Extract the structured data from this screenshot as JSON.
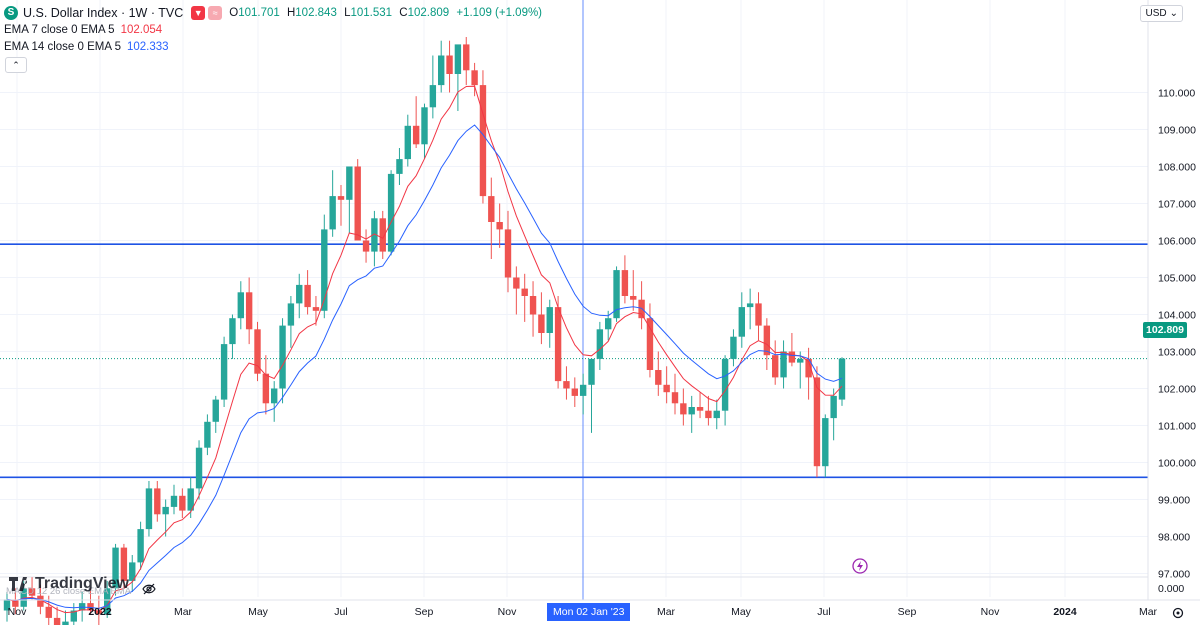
{
  "legend": {
    "symbol_icon": "S",
    "title": "U.S. Dollar Index · 1W · TVC",
    "ohlc": [
      {
        "key": "O",
        "value": "101.701"
      },
      {
        "key": "H",
        "value": "102.843"
      },
      {
        "key": "L",
        "value": "101.531"
      },
      {
        "key": "C",
        "value": "102.809"
      },
      {
        "key": "",
        "value": "+1.109 (+1.09%)"
      }
    ],
    "indicators": [
      {
        "label": "EMA 7 close 0 EMA 5",
        "value": "102.054",
        "color": "#f23645"
      },
      {
        "label": "EMA 14 close 0 EMA 5",
        "value": "102.333",
        "color": "#2962ff"
      }
    ]
  },
  "currency": "USD",
  "last_price_label": "102.809",
  "crosshair_date_label": "Mon 02 Jan '23",
  "watermark": "TradingView",
  "bottom_pane_text": "MACD 12 26 close EMA EMA",
  "colors": {
    "up": "#26a69a",
    "down": "#ef5350",
    "ema7": "#f23645",
    "ema14": "#2962ff",
    "hline": "#1e53e5"
  },
  "chart_data": {
    "type": "candlestick",
    "timeframe": "1W",
    "x_axis_labels": [
      "Nov",
      "2022",
      "Mar",
      "May",
      "Jul",
      "Sep",
      "Nov",
      "Mon 02 Jan '23",
      "Mar",
      "May",
      "Jul",
      "Sep",
      "Nov",
      "2024",
      "Mar"
    ],
    "y_axis_labels": [
      "110.000",
      "109.000",
      "108.000",
      "107.000",
      "106.000",
      "105.000",
      "104.000",
      "103.000",
      "102.000",
      "101.000",
      "100.000",
      "99.000",
      "98.000",
      "97.000",
      "0.000"
    ],
    "ylim": [
      96.6,
      111.5
    ],
    "horizontal_lines": [
      105.9,
      99.6
    ],
    "series": [
      {
        "name": "U.S. Dollar Index",
        "candles": [
          [
            96.0,
            96.5,
            95.7,
            96.3
          ],
          [
            96.3,
            96.6,
            95.9,
            96.1
          ],
          [
            96.1,
            96.8,
            96.0,
            96.6
          ],
          [
            96.6,
            96.9,
            96.3,
            96.4
          ],
          [
            96.4,
            96.7,
            95.9,
            96.1
          ],
          [
            96.1,
            96.4,
            95.6,
            95.8
          ],
          [
            95.8,
            96.1,
            95.3,
            95.6
          ],
          [
            95.6,
            96.0,
            95.2,
            95.7
          ],
          [
            95.7,
            96.2,
            95.4,
            96.0
          ],
          [
            96.0,
            96.5,
            95.7,
            96.2
          ],
          [
            96.2,
            96.6,
            95.9,
            96.0
          ],
          [
            96.0,
            96.4,
            95.6,
            95.9
          ],
          [
            95.9,
            96.8,
            95.8,
            96.6
          ],
          [
            96.6,
            97.8,
            96.4,
            97.7
          ],
          [
            97.7,
            97.8,
            96.6,
            96.8
          ],
          [
            96.8,
            97.5,
            96.5,
            97.3
          ],
          [
            97.3,
            98.4,
            97.1,
            98.2
          ],
          [
            98.2,
            99.5,
            98.0,
            99.3
          ],
          [
            99.3,
            99.5,
            98.4,
            98.6
          ],
          [
            98.6,
            99.0,
            98.0,
            98.8
          ],
          [
            98.8,
            99.4,
            98.6,
            99.1
          ],
          [
            99.1,
            99.3,
            98.5,
            98.7
          ],
          [
            98.7,
            99.6,
            98.5,
            99.3
          ],
          [
            99.3,
            100.6,
            99.0,
            100.4
          ],
          [
            100.4,
            101.3,
            100.2,
            101.1
          ],
          [
            101.1,
            101.8,
            100.8,
            101.7
          ],
          [
            101.7,
            103.4,
            101.5,
            103.2
          ],
          [
            103.2,
            104.0,
            102.8,
            103.9
          ],
          [
            103.9,
            104.9,
            103.6,
            104.6
          ],
          [
            104.6,
            105.0,
            103.2,
            103.6
          ],
          [
            103.6,
            103.8,
            102.2,
            102.4
          ],
          [
            102.4,
            102.9,
            101.3,
            101.6
          ],
          [
            101.6,
            102.2,
            101.1,
            102.0
          ],
          [
            102.0,
            103.9,
            101.6,
            103.7
          ],
          [
            103.7,
            104.5,
            103.1,
            104.3
          ],
          [
            104.3,
            105.1,
            103.9,
            104.8
          ],
          [
            104.8,
            105.2,
            104.0,
            104.2
          ],
          [
            104.2,
            104.5,
            103.7,
            104.1
          ],
          [
            104.1,
            106.7,
            103.9,
            106.3
          ],
          [
            106.3,
            107.9,
            106.1,
            107.2
          ],
          [
            107.2,
            107.5,
            106.4,
            107.1
          ],
          [
            107.1,
            108.0,
            106.2,
            108.0
          ],
          [
            108.0,
            108.2,
            106.0,
            106.0
          ],
          [
            106.0,
            106.3,
            105.4,
            105.7
          ],
          [
            105.7,
            106.8,
            105.3,
            106.6
          ],
          [
            106.6,
            106.8,
            105.5,
            105.7
          ],
          [
            105.7,
            107.9,
            105.6,
            107.8
          ],
          [
            107.8,
            108.5,
            107.5,
            108.2
          ],
          [
            108.2,
            109.4,
            108.0,
            109.1
          ],
          [
            109.1,
            109.9,
            108.5,
            108.6
          ],
          [
            108.6,
            109.7,
            108.2,
            109.6
          ],
          [
            109.6,
            111.0,
            109.3,
            110.2
          ],
          [
            110.2,
            111.4,
            110.0,
            111.0
          ],
          [
            111.0,
            111.4,
            110.0,
            110.5
          ],
          [
            110.5,
            111.2,
            109.5,
            111.3
          ],
          [
            111.3,
            111.5,
            110.2,
            110.6
          ],
          [
            110.6,
            110.8,
            109.9,
            110.2
          ],
          [
            110.2,
            110.6,
            107.0,
            107.2
          ],
          [
            107.2,
            107.7,
            105.5,
            106.5
          ],
          [
            106.5,
            107.0,
            105.8,
            106.3
          ],
          [
            106.3,
            106.8,
            104.6,
            105.0
          ],
          [
            105.0,
            105.3,
            104.0,
            104.7
          ],
          [
            104.7,
            105.1,
            103.8,
            104.5
          ],
          [
            104.5,
            104.9,
            103.4,
            104.0
          ],
          [
            104.0,
            104.6,
            103.2,
            103.5
          ],
          [
            103.5,
            104.4,
            103.1,
            104.2
          ],
          [
            104.2,
            104.5,
            102.0,
            102.2
          ],
          [
            102.2,
            102.6,
            101.7,
            102.0
          ],
          [
            102.0,
            102.3,
            101.5,
            101.8
          ],
          [
            101.8,
            102.4,
            101.3,
            102.1
          ],
          [
            102.1,
            102.8,
            100.8,
            102.8
          ],
          [
            102.8,
            103.8,
            102.5,
            103.6
          ],
          [
            103.6,
            104.1,
            103.3,
            103.9
          ],
          [
            103.9,
            105.3,
            103.8,
            105.2
          ],
          [
            105.2,
            105.6,
            104.3,
            104.5
          ],
          [
            104.5,
            105.2,
            104.1,
            104.4
          ],
          [
            104.4,
            104.9,
            103.6,
            103.9
          ],
          [
            103.9,
            104.3,
            102.3,
            102.5
          ],
          [
            102.5,
            103.0,
            101.8,
            102.1
          ],
          [
            102.1,
            102.6,
            101.6,
            101.9
          ],
          [
            101.9,
            102.4,
            101.3,
            101.6
          ],
          [
            101.6,
            102.0,
            101.0,
            101.3
          ],
          [
            101.3,
            101.8,
            100.8,
            101.5
          ],
          [
            101.5,
            101.9,
            101.2,
            101.4
          ],
          [
            101.4,
            101.8,
            101.0,
            101.2
          ],
          [
            101.2,
            101.7,
            100.9,
            101.4
          ],
          [
            101.4,
            102.9,
            101.0,
            102.8
          ],
          [
            102.8,
            103.6,
            102.6,
            103.4
          ],
          [
            103.4,
            104.6,
            103.1,
            104.2
          ],
          [
            104.2,
            104.7,
            103.6,
            104.3
          ],
          [
            104.3,
            104.6,
            103.3,
            103.7
          ],
          [
            103.7,
            103.9,
            102.5,
            102.9
          ],
          [
            102.9,
            103.3,
            102.1,
            102.3
          ],
          [
            102.3,
            103.3,
            102.0,
            103.0
          ],
          [
            103.0,
            103.5,
            102.6,
            102.7
          ],
          [
            102.7,
            103.0,
            102.0,
            102.8
          ],
          [
            102.8,
            103.1,
            101.7,
            102.3
          ],
          [
            102.3,
            102.6,
            99.6,
            99.9
          ],
          [
            99.9,
            101.3,
            99.6,
            101.2
          ],
          [
            101.2,
            102.0,
            100.6,
            101.8
          ],
          [
            101.701,
            102.843,
            101.531,
            102.809
          ]
        ]
      },
      {
        "name": "EMA 7 close 0 EMA 5",
        "source": "computed",
        "period": 7
      },
      {
        "name": "EMA 14 close 0 EMA 5",
        "source": "computed",
        "period": 14
      }
    ]
  }
}
